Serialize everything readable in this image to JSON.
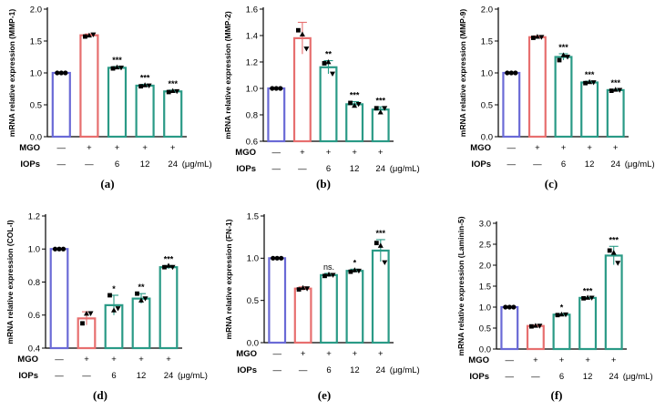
{
  "figure": {
    "row_labels": {
      "mgo": "MGO",
      "iops": "IOPs"
    },
    "unit_label": "(μg/mL)",
    "mgo_signs": [
      "—",
      "+",
      "+",
      "+",
      "+"
    ],
    "iops_values": [
      "—",
      "—",
      "6",
      "12",
      "24"
    ],
    "colors": {
      "control": "#6a6ad6",
      "model": "#e76f6f",
      "treatment": "#2a9a86",
      "point": "#000000"
    }
  },
  "chart_data": [
    {
      "type": "bar",
      "panel": "(a)",
      "ylabel": "mRNA relative expression (MMP-1)",
      "ylim": [
        0,
        2.0
      ],
      "yticks": [
        "0.0",
        "0.5",
        "1.0",
        "1.5",
        "2.0"
      ],
      "values": [
        1.0,
        1.59,
        1.08,
        0.8,
        0.71
      ],
      "errors": [
        0.0,
        0.02,
        0.02,
        0.02,
        0.02
      ],
      "points": [
        [
          1.0,
          1.0,
          1.0
        ],
        [
          1.57,
          1.59,
          1.6
        ],
        [
          1.07,
          1.09,
          1.08
        ],
        [
          0.79,
          0.81,
          0.8
        ],
        [
          0.7,
          0.72,
          0.71
        ]
      ],
      "significance": [
        "",
        "",
        "***",
        "***",
        "***"
      ]
    },
    {
      "type": "bar",
      "panel": "(b)",
      "ylabel": "mRNA relative expression (MMP-2)",
      "ylim": [
        0.6,
        1.6
      ],
      "yticks": [
        "0.6",
        "0.8",
        "1.0",
        "1.2",
        "1.4",
        "1.6"
      ],
      "values": [
        1.0,
        1.38,
        1.16,
        0.88,
        0.84
      ],
      "errors": [
        0.0,
        0.12,
        0.05,
        0.02,
        0.02
      ],
      "points": [
        [
          1.0,
          1.0,
          1.0
        ],
        [
          1.44,
          1.41,
          1.3
        ],
        [
          1.19,
          1.2,
          1.11
        ],
        [
          0.89,
          0.87,
          0.88
        ],
        [
          0.85,
          0.82,
          0.85
        ]
      ],
      "significance": [
        "",
        "",
        "**",
        "***",
        "***"
      ]
    },
    {
      "type": "bar",
      "panel": "(c)",
      "ylabel": "mRNA relative expression (MMP-9)",
      "ylim": [
        0,
        2.0
      ],
      "yticks": [
        "0.0",
        "0.5",
        "1.0",
        "1.5",
        "2.0"
      ],
      "values": [
        1.0,
        1.56,
        1.25,
        0.85,
        0.73
      ],
      "errors": [
        0.0,
        0.02,
        0.05,
        0.02,
        0.01
      ],
      "points": [
        [
          1.0,
          1.0,
          1.0
        ],
        [
          1.55,
          1.57,
          1.56
        ],
        [
          1.2,
          1.28,
          1.25
        ],
        [
          0.84,
          0.86,
          0.85
        ],
        [
          0.72,
          0.74,
          0.73
        ]
      ],
      "significance": [
        "",
        "",
        "***",
        "***",
        "***"
      ]
    },
    {
      "type": "bar",
      "panel": "(d)",
      "ylabel": "mRNA relative expression (COL-I)",
      "ylim": [
        0.4,
        1.2
      ],
      "yticks": [
        "0.4",
        "0.6",
        "0.8",
        "1.0",
        "1.2"
      ],
      "values": [
        1.0,
        0.58,
        0.66,
        0.7,
        0.89
      ],
      "errors": [
        0.0,
        0.04,
        0.06,
        0.03,
        0.01
      ],
      "points": [
        [
          1.0,
          1.0,
          1.0
        ],
        [
          0.55,
          0.61,
          0.61
        ],
        [
          0.72,
          0.63,
          0.64
        ],
        [
          0.73,
          0.69,
          0.7
        ],
        [
          0.89,
          0.9,
          0.89
        ]
      ],
      "significance": [
        "",
        "",
        "*",
        "**",
        "***"
      ]
    },
    {
      "type": "bar",
      "panel": "(e)",
      "ylabel": "mRNA relative expression (FN-1)",
      "ylim": [
        0,
        1.5
      ],
      "yticks": [
        "0.0",
        "0.5",
        "1.0",
        "1.5"
      ],
      "values": [
        1.0,
        0.64,
        0.8,
        0.85,
        1.09
      ],
      "errors": [
        0.0,
        0.02,
        0.02,
        0.02,
        0.13
      ],
      "points": [
        [
          1.0,
          1.0,
          1.0
        ],
        [
          0.63,
          0.65,
          0.64
        ],
        [
          0.79,
          0.81,
          0.8
        ],
        [
          0.84,
          0.86,
          0.85
        ],
        [
          1.18,
          1.15,
          0.95
        ]
      ],
      "significance": [
        "",
        "",
        "ns.",
        "*",
        "***"
      ]
    },
    {
      "type": "bar",
      "panel": "(f)",
      "ylabel": "mRNA relative expression (Laminin-5)",
      "ylim": [
        0,
        3.0
      ],
      "yticks": [
        "0.0",
        "0.5",
        "1.0",
        "1.5",
        "2.0",
        "2.5",
        "3.0"
      ],
      "values": [
        1.0,
        0.55,
        0.82,
        1.22,
        2.23
      ],
      "errors": [
        0.0,
        0.02,
        0.02,
        0.01,
        0.22
      ],
      "points": [
        [
          1.0,
          1.0,
          1.0
        ],
        [
          0.54,
          0.56,
          0.55
        ],
        [
          0.81,
          0.83,
          0.82
        ],
        [
          1.21,
          1.23,
          1.22
        ],
        [
          2.35,
          2.3,
          2.05
        ]
      ],
      "significance": [
        "",
        "",
        "*",
        "***",
        "***"
      ]
    }
  ]
}
